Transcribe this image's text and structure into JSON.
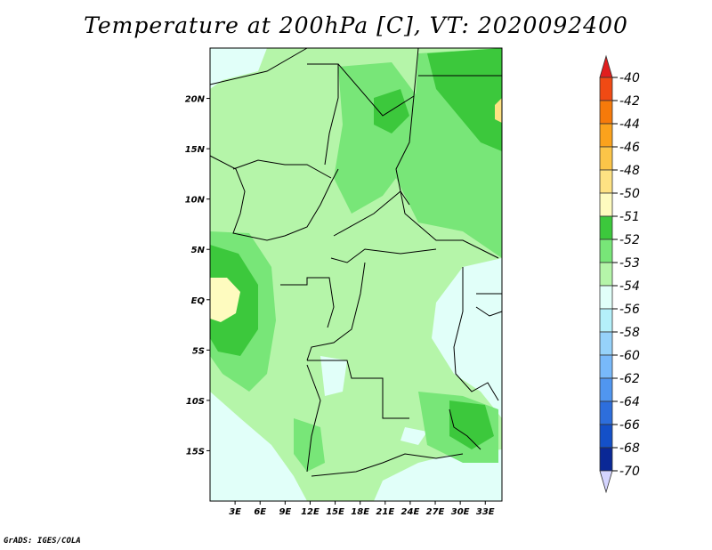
{
  "title": "Temperature at 200hPa [C], VT: 2020092400",
  "footer": "GrADS: IGES/COLA",
  "map": {
    "lon_range": [
      0,
      35
    ],
    "lat_range": [
      -20,
      25
    ],
    "lat_ticks": [
      {
        "lat": 20,
        "label": "20N"
      },
      {
        "lat": 15,
        "label": "15N"
      },
      {
        "lat": 10,
        "label": "10N"
      },
      {
        "lat": 5,
        "label": "5N"
      },
      {
        "lat": 0,
        "label": "EQ"
      },
      {
        "lat": -5,
        "label": "5S"
      },
      {
        "lat": -10,
        "label": "10S"
      },
      {
        "lat": -15,
        "label": "15S"
      }
    ],
    "lon_ticks": [
      {
        "lon": 3,
        "label": "3E"
      },
      {
        "lon": 6,
        "label": "6E"
      },
      {
        "lon": 9,
        "label": "9E"
      },
      {
        "lon": 12,
        "label": "12E"
      },
      {
        "lon": 15,
        "label": "15E"
      },
      {
        "lon": 18,
        "label": "18E"
      },
      {
        "lon": 21,
        "label": "21E"
      },
      {
        "lon": 24,
        "label": "24E"
      },
      {
        "lon": 27,
        "label": "27E"
      },
      {
        "lon": 30,
        "label": "30E"
      },
      {
        "lon": 33,
        "label": "33E"
      }
    ]
  },
  "colorbar": {
    "levels": [
      {
        "label": "-40",
        "color": "#e01e1e"
      },
      {
        "label": "-42",
        "color": "#f04a14"
      },
      {
        "label": "-44",
        "color": "#f67a0a"
      },
      {
        "label": "-46",
        "color": "#fba21c"
      },
      {
        "label": "-48",
        "color": "#fcc548"
      },
      {
        "label": "-50",
        "color": "#fee283"
      },
      {
        "label": "-51",
        "color": "#fefbbf"
      },
      {
        "label": "-52",
        "color": "#3cc83c"
      },
      {
        "label": "-53",
        "color": "#78e678"
      },
      {
        "label": "-54",
        "color": "#b5f5a9"
      },
      {
        "label": "-56",
        "color": "#e1fff9"
      },
      {
        "label": "-58",
        "color": "#b4f0fa"
      },
      {
        "label": "-60",
        "color": "#96d2fa"
      },
      {
        "label": "-62",
        "color": "#78b9fa"
      },
      {
        "label": "-64",
        "color": "#5096f0"
      },
      {
        "label": "-66",
        "color": "#2d6edc"
      },
      {
        "label": "-68",
        "color": "#1450c8"
      },
      {
        "label": "-70",
        "color": "#0a2896"
      }
    ],
    "under_color": "#000064",
    "over_color": "#d5d5ff"
  }
}
